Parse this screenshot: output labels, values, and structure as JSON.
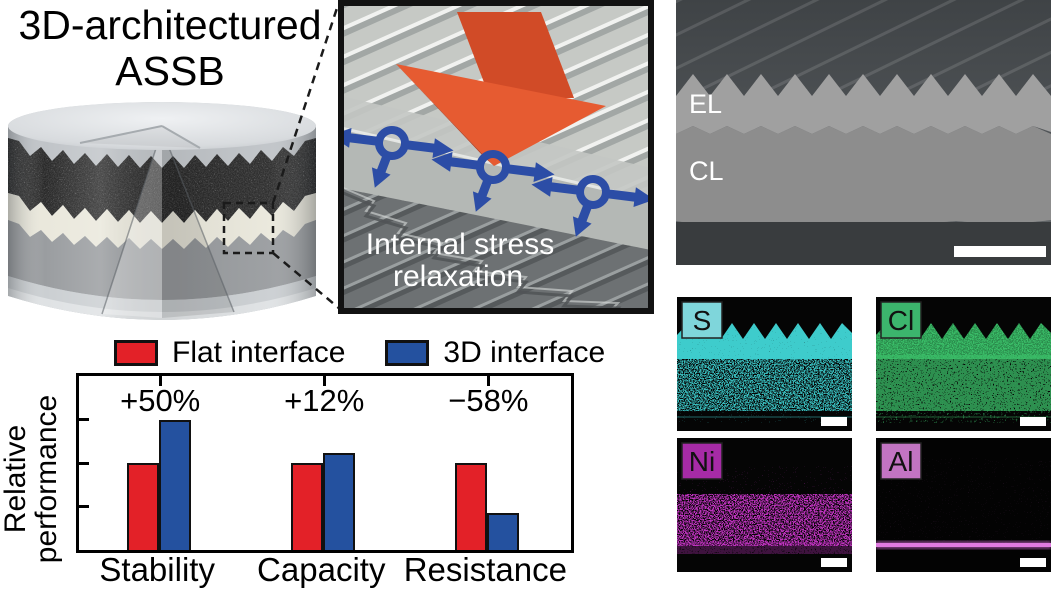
{
  "title": {
    "line1": "3D-architectured",
    "line2": "ASSB"
  },
  "inset": {
    "caption_line1": "Internal stress",
    "caption_line2": "relaxation",
    "arrow_color": "#e65b31",
    "arrow_dark": "#d14b27",
    "arrow_shadow": "#b93f1f",
    "ion_color": "#2c4da6"
  },
  "sem": {
    "label_electrolyte": "EL",
    "label_cathode": "CL"
  },
  "eds": [
    {
      "symbol": "S",
      "box_color": "#7fd6db",
      "map_color": "#3ecccc"
    },
    {
      "symbol": "Cl",
      "box_color": "#3cb56d",
      "map_color": "#3abd68"
    },
    {
      "symbol": "Ni",
      "box_color": "#a62ba6",
      "map_color": "#c634c6"
    },
    {
      "symbol": "Al",
      "box_color": "#c274c2",
      "map_color": "#d66ad6"
    }
  ],
  "chart_data": {
    "type": "bar",
    "categories": [
      "Stability",
      "Capacity",
      "Resistance"
    ],
    "series": [
      {
        "name": "Flat interface",
        "color": "#e32128",
        "values": [
          100,
          100,
          100
        ]
      },
      {
        "name": "3D interface",
        "color": "#24519f",
        "values": [
          150,
          112,
          42
        ]
      }
    ],
    "annotations": [
      "+50%",
      "+12%",
      "−58%"
    ],
    "ylabel_line1": "Relative",
    "ylabel_line2": "performance",
    "ylim": [
      0,
      200
    ],
    "yticks": [
      50,
      100,
      150
    ],
    "legend_position": "top",
    "grid": false,
    "bar_edge_color": "#111111"
  }
}
